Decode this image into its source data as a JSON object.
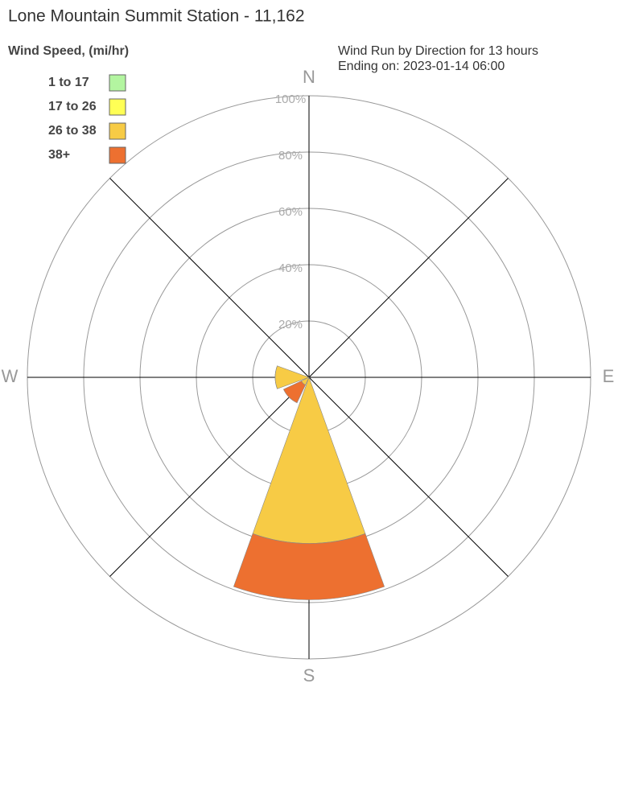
{
  "chart_data": {
    "type": "windrose",
    "title": "Lone Mountain Summit Station - 11,162",
    "subtitle": [
      "Wind Run by Direction for 13 hours",
      "Ending on: 2023-01-14 06:00"
    ],
    "legend_title": "Wind Speed, (mi/hr)",
    "legend": "top-left",
    "categories": [
      "N",
      null,
      "E",
      null,
      "S",
      null,
      "W",
      null
    ],
    "series": [
      {
        "name": "1 to 17",
        "color": "#b3f5a0",
        "values": [
          0,
          0,
          0,
          0,
          0,
          0,
          0,
          0
        ]
      },
      {
        "name": "17 to 26",
        "color": "#ffff55",
        "values": [
          0,
          0,
          0,
          0,
          0,
          0,
          0,
          0
        ]
      },
      {
        "name": "26 to 38",
        "color": "#f7cb45",
        "values": [
          0,
          0,
          0,
          0,
          59,
          3,
          12,
          0
        ]
      },
      {
        "name": "38+",
        "color": "#ed7030",
        "values": [
          0,
          0,
          0,
          0,
          20,
          7,
          0,
          0
        ]
      }
    ],
    "rlim": [
      0,
      100
    ],
    "rticks": [
      {
        "value": 20,
        "label": "20%"
      },
      {
        "value": 40,
        "label": "40%"
      },
      {
        "value": 60,
        "label": "60%"
      },
      {
        "value": 80,
        "label": "80%"
      },
      {
        "value": 100,
        "label": "100%"
      }
    ],
    "grid": true
  }
}
